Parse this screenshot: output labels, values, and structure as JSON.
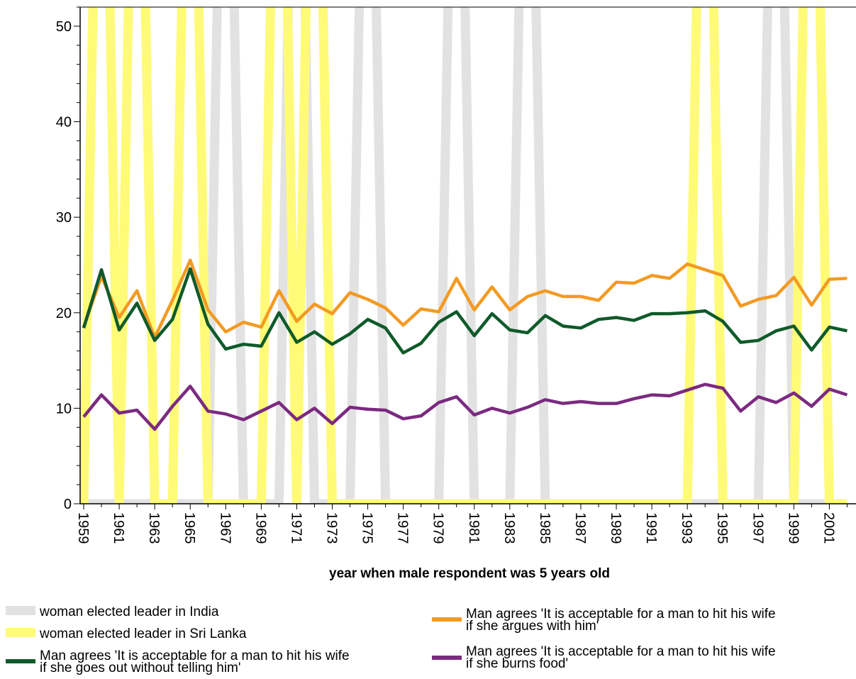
{
  "chart_data": {
    "type": "line",
    "xlabel": "year when male respondent was 5 years old",
    "ylabel": "",
    "xlim": [
      1958.8,
      2002.5
    ],
    "ylim": [
      0,
      52
    ],
    "grid": false,
    "legend_position": "bottom",
    "y_ticks": [
      0,
      10,
      20,
      30,
      40,
      50
    ],
    "x_tick_labels": [
      "1959",
      "1961",
      "1963",
      "1965",
      "1967",
      "1969",
      "1971",
      "1973",
      "1975",
      "1977",
      "1979",
      "1981",
      "1983",
      "1985",
      "1987",
      "1989",
      "1991",
      "1993",
      "1995",
      "1997",
      "1999",
      "2001"
    ],
    "x": [
      1959,
      1960,
      1961,
      1962,
      1963,
      1964,
      1965,
      1966,
      1967,
      1968,
      1969,
      1970,
      1971,
      1972,
      1973,
      1974,
      1975,
      1976,
      1977,
      1978,
      1979,
      1980,
      1981,
      1982,
      1983,
      1984,
      1985,
      1986,
      1987,
      1988,
      1989,
      1990,
      1991,
      1992,
      1993,
      1994,
      1995,
      1996,
      1997,
      1998,
      1999,
      2000,
      2001,
      2002
    ],
    "background_series": [
      {
        "name": "woman elected leader in India",
        "color": "#e2e2e2",
        "values": [
          0,
          0,
          0,
          0,
          0,
          0,
          0,
          0,
          100,
          0,
          0,
          0,
          100,
          0,
          0,
          0,
          100,
          0,
          0,
          0,
          0,
          100,
          0,
          0,
          0,
          100,
          0,
          0,
          0,
          0,
          0,
          0,
          0,
          0,
          0,
          0,
          0,
          0,
          0,
          100,
          0,
          0,
          0,
          0
        ]
      },
      {
        "name": "woman elected leader in Sri Lanka",
        "color": "#fffa78",
        "values": [
          0,
          100,
          0,
          100,
          0,
          0,
          100,
          0,
          0,
          0,
          0,
          100,
          0,
          100,
          0,
          0,
          0,
          0,
          0,
          0,
          0,
          0,
          0,
          0,
          0,
          0,
          0,
          0,
          0,
          0,
          0,
          0,
          0,
          0,
          0,
          100,
          0,
          0,
          0,
          0,
          0,
          100,
          0,
          0
        ]
      }
    ],
    "series": [
      {
        "name": "Man agrees 'It is acceptable for a man to hit his wife if she argues with him'",
        "color": "#f39a22",
        "values": [
          18.5,
          23.8,
          19.5,
          22.3,
          17.4,
          21.3,
          25.5,
          20.3,
          18.0,
          19.0,
          18.5,
          22.3,
          19.1,
          20.9,
          19.9,
          22.1,
          21.4,
          20.5,
          18.7,
          20.4,
          20.1,
          23.6,
          20.3,
          22.7,
          20.3,
          21.7,
          22.3,
          21.7,
          21.7,
          21.3,
          23.2,
          23.1,
          23.9,
          23.6,
          25.1,
          24.5,
          23.9,
          20.7,
          21.4,
          21.8,
          23.7,
          20.8,
          23.5,
          23.6
        ]
      },
      {
        "name": "Man agrees 'It is acceptable for a man to hit his wife if she goes out without telling him'",
        "color": "#0f5a2a",
        "values": [
          18.4,
          24.5,
          18.2,
          21.0,
          17.1,
          19.3,
          24.6,
          18.8,
          16.2,
          16.7,
          16.5,
          20.0,
          16.9,
          18.0,
          16.7,
          17.8,
          19.3,
          18.4,
          15.8,
          16.8,
          19.0,
          20.1,
          17.6,
          19.9,
          18.2,
          17.9,
          19.7,
          18.6,
          18.4,
          19.3,
          19.5,
          19.2,
          19.9,
          19.9,
          20.0,
          20.2,
          19.1,
          16.9,
          17.1,
          18.1,
          18.6,
          16.1,
          18.5,
          18.1
        ]
      },
      {
        "name": "Man agrees 'It is acceptable for a man to hit his wife if she burns food'",
        "color": "#7b2a80",
        "values": [
          9.1,
          11.4,
          9.5,
          9.8,
          7.8,
          10.2,
          12.3,
          9.7,
          9.4,
          8.8,
          9.7,
          10.6,
          8.8,
          10.0,
          8.4,
          10.1,
          9.9,
          9.8,
          8.9,
          9.2,
          10.6,
          11.2,
          9.3,
          10.0,
          9.5,
          10.1,
          10.9,
          10.5,
          10.7,
          10.5,
          10.5,
          11.0,
          11.4,
          11.3,
          11.9,
          12.5,
          12.1,
          9.7,
          11.2,
          10.6,
          11.6,
          10.2,
          12.0,
          11.4
        ]
      }
    ]
  }
}
